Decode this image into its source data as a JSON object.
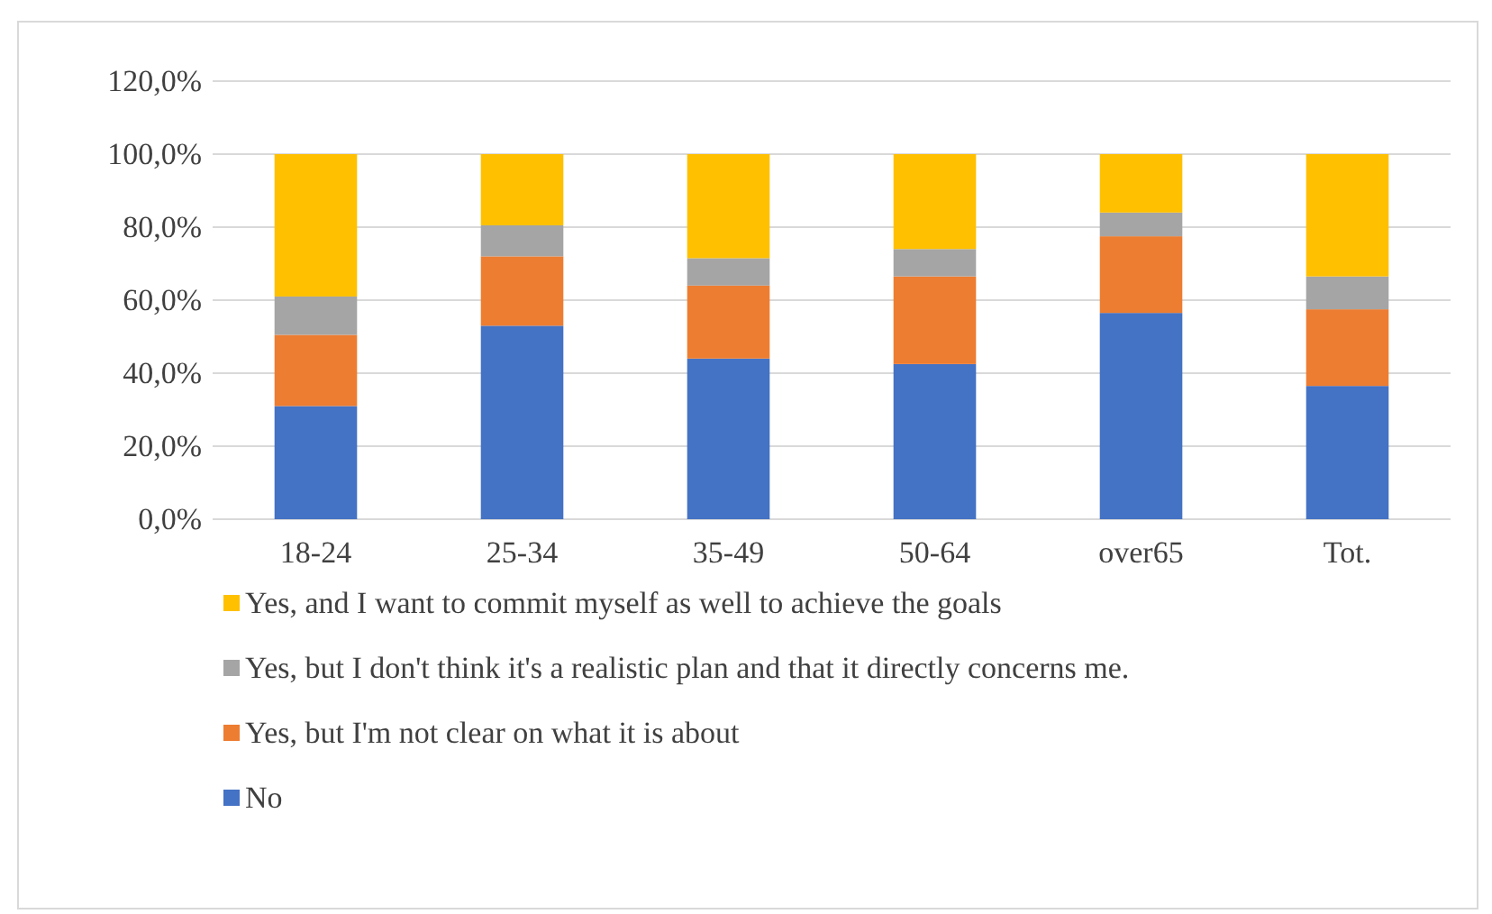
{
  "chart_data": {
    "type": "bar",
    "stacked": true,
    "categories": [
      "18-24",
      "25-34",
      "35-49",
      "50-64",
      "over65",
      "Tot."
    ],
    "series": [
      {
        "name": "No",
        "color": "#4472c4",
        "values": [
          31,
          53,
          44,
          42.5,
          56.5,
          36.5
        ]
      },
      {
        "name": "Yes, but I'm not clear on what it is about",
        "color": "#ed7d31",
        "values": [
          19.5,
          19,
          20,
          24,
          21,
          21
        ]
      },
      {
        "name": "Yes, but I don't think it's a realistic plan and that it directly concerns me.",
        "color": "#a5a5a5",
        "values": [
          10.5,
          8.5,
          7.5,
          7.5,
          6.5,
          9
        ]
      },
      {
        "name": "Yes, and I want to commit myself as well to achieve the goals",
        "color": "#ffc000",
        "values": [
          39,
          19.5,
          28.5,
          26,
          16,
          33.5
        ]
      }
    ],
    "ylim": [
      0,
      120
    ],
    "yticks": [
      {
        "value": 0,
        "label": "0,0%"
      },
      {
        "value": 20,
        "label": "20,0%"
      },
      {
        "value": 40,
        "label": "40,0%"
      },
      {
        "value": 60,
        "label": "60,0%"
      },
      {
        "value": 80,
        "label": "80,0%"
      },
      {
        "value": 100,
        "label": "100,0%"
      },
      {
        "value": 120,
        "label": "120,0%"
      }
    ],
    "grid": "y",
    "legend": "bottom"
  }
}
